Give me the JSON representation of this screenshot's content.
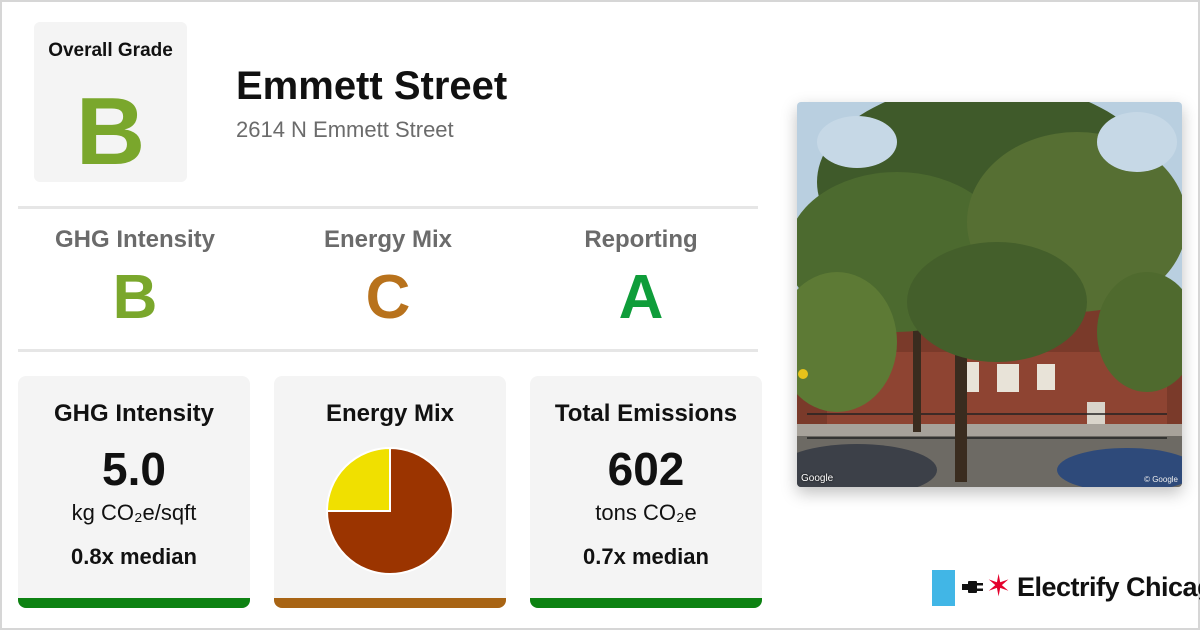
{
  "overall": {
    "label": "Overall Grade",
    "grade": "B",
    "color": "#7aa72c"
  },
  "building": {
    "name": "Emmett Street",
    "address": "2614 N Emmett Street"
  },
  "subgrades": [
    {
      "label": "GHG Intensity",
      "grade": "B",
      "color": "#7aa72c"
    },
    {
      "label": "Energy Mix",
      "grade": "C",
      "color": "#b8721c"
    },
    {
      "label": "Reporting",
      "grade": "A",
      "color": "#0f9d3a"
    }
  ],
  "cards": {
    "ghg": {
      "title": "GHG Intensity",
      "value": "5.0",
      "unit": "kg CO₂e/sqft",
      "median": "0.8x median",
      "bar_color": "#0d8212"
    },
    "mix": {
      "title": "Energy Mix",
      "bar_color": "#a86414"
    },
    "emissions": {
      "title": "Total Emissions",
      "value": "602",
      "unit": "tons CO₂e",
      "median": "0.7x median",
      "bar_color": "#0d8212"
    }
  },
  "energy_mix_chart": {
    "type": "pie",
    "slices": [
      {
        "share": 0.75,
        "color": "#9b3400"
      },
      {
        "share": 0.25,
        "color": "#f0e000"
      }
    ]
  },
  "photo": {
    "credit_left": "Google",
    "credit_right": "© Google"
  },
  "brand": {
    "name": "Electrify Chicago",
    "stripe_color": "#41b6e6",
    "star_color": "#e4002b",
    "star_glyph": "✶"
  }
}
